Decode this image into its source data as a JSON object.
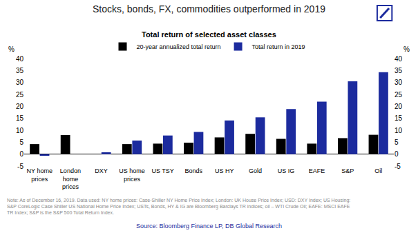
{
  "chart_data": {
    "type": "bar",
    "title": "Stocks, bonds, FX, commodities outperformed in 2019",
    "subtitle": "Total return of selected asset classes",
    "y_label": "%",
    "y2_label": "%",
    "categories": [
      "NY home prices",
      "London home prices",
      "DXY",
      "US home prices",
      "US TSY",
      "Bonds",
      "US HY",
      "Gold",
      "US IG",
      "EAFE",
      "S&P",
      "Oil"
    ],
    "series": [
      {
        "name": "20-year annualized total return",
        "color": "#000000",
        "values": [
          4.2,
          8.0,
          0.0,
          4.2,
          4.4,
          4.8,
          7.0,
          8.5,
          6.4,
          4.4,
          6.7,
          8.1
        ]
      },
      {
        "name": "Total return in 2019",
        "color": "#1c2b9e",
        "values": [
          -0.7,
          0.0,
          0.8,
          5.7,
          7.8,
          9.3,
          14.1,
          15.4,
          18.9,
          22.0,
          30.5,
          34.3
        ]
      }
    ],
    "ylim": [
      -5,
      40
    ],
    "yticks": [
      -5,
      0,
      5,
      10,
      15,
      20,
      25,
      30,
      35,
      40
    ],
    "y2lim": [
      -5,
      40
    ],
    "y2ticks": [
      -5,
      0,
      5,
      10,
      15,
      20,
      25,
      30,
      35,
      40
    ],
    "grid": false,
    "legend": "top",
    "note": "Note: As of December 16, 2019. Data used: NY home prices: Case-Shiller NY Home Price Index; London: UK House Price Index; USD: DXY Index; US Housing: S&P CoreLogic Case Shiller US National Home Price Index; USTs, Bonds, HY & IG are Bloomberg Barclays TR indices; oil – WTI Crude Oil; EAFE: MSCI EAFE TR Index; S&P is the S&P 500 Total Return Index.",
    "source": "Source: Bloomberg Finance LP, DB Global Research"
  }
}
